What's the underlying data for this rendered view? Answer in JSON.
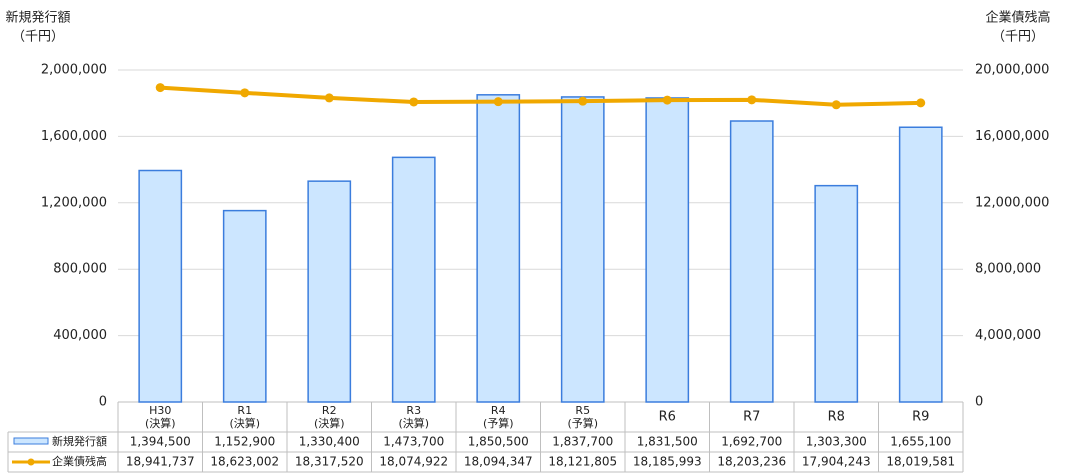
{
  "chart_data": {
    "type": "bar_line",
    "y_title": "新規発行額",
    "y_unit": "（千円）",
    "y2_title": "企業債残高",
    "y2_unit": "（千円）",
    "categories": [
      "H30",
      "R1",
      "R2",
      "R3",
      "R4",
      "R5",
      "R6",
      "R7",
      "R8",
      "R9"
    ],
    "category_notes": [
      "(決算)",
      "(決算)",
      "(決算)",
      "(決算)",
      "(予算)",
      "(予算)",
      null,
      null,
      null,
      null
    ],
    "ylim": [
      0,
      2000000
    ],
    "yticks": [
      0,
      {
        "value": 400000,
        "label": "400,000"
      },
      {
        "value": 800000,
        "label": "800,000"
      },
      {
        "value": 1200000,
        "label": "1,200,000"
      },
      {
        "value": 1600000,
        "label": "1,600,000"
      },
      {
        "value": 2000000,
        "label": "2,000,000"
      }
    ],
    "y2lim": [
      0,
      20000000
    ],
    "y2ticks": [
      0,
      {
        "value": 4000000,
        "label": "4,000,000"
      },
      {
        "value": 8000000,
        "label": "8,000,000"
      },
      {
        "value": 12000000,
        "label": "12,000,000"
      },
      {
        "value": 16000000,
        "label": "16,000,000"
      },
      {
        "value": 20000000,
        "label": "20,000,000"
      }
    ],
    "grid": true,
    "series": [
      {
        "name": "新規発行額",
        "type": "bar",
        "color": "#cce6ff",
        "edge": "#3b7ddd",
        "values": [
          1394500,
          1152900,
          1330400,
          1473700,
          1850500,
          1837700,
          1831500,
          1692700,
          1303300,
          1655100
        ],
        "value_labels": [
          "1,394,500",
          "1,152,900",
          "1,330,400",
          "1,473,700",
          "1,850,500",
          "1,837,700",
          "1,831,500",
          "1,692,700",
          "1,303,300",
          "1,655,100"
        ]
      },
      {
        "name": "企業債残高",
        "type": "line",
        "axis": "y2",
        "color": "#f0a800",
        "values": [
          18941737,
          18623002,
          18317520,
          18074922,
          18094347,
          18121805,
          18185993,
          18203236,
          17904243,
          18019581
        ],
        "value_labels": [
          "18,941,737",
          "18,623,002",
          "18,317,520",
          "18,074,922",
          "18,094,347",
          "18,121,805",
          "18,185,993",
          "18,203,236",
          "17,904,243",
          "18,019,581"
        ]
      }
    ]
  }
}
